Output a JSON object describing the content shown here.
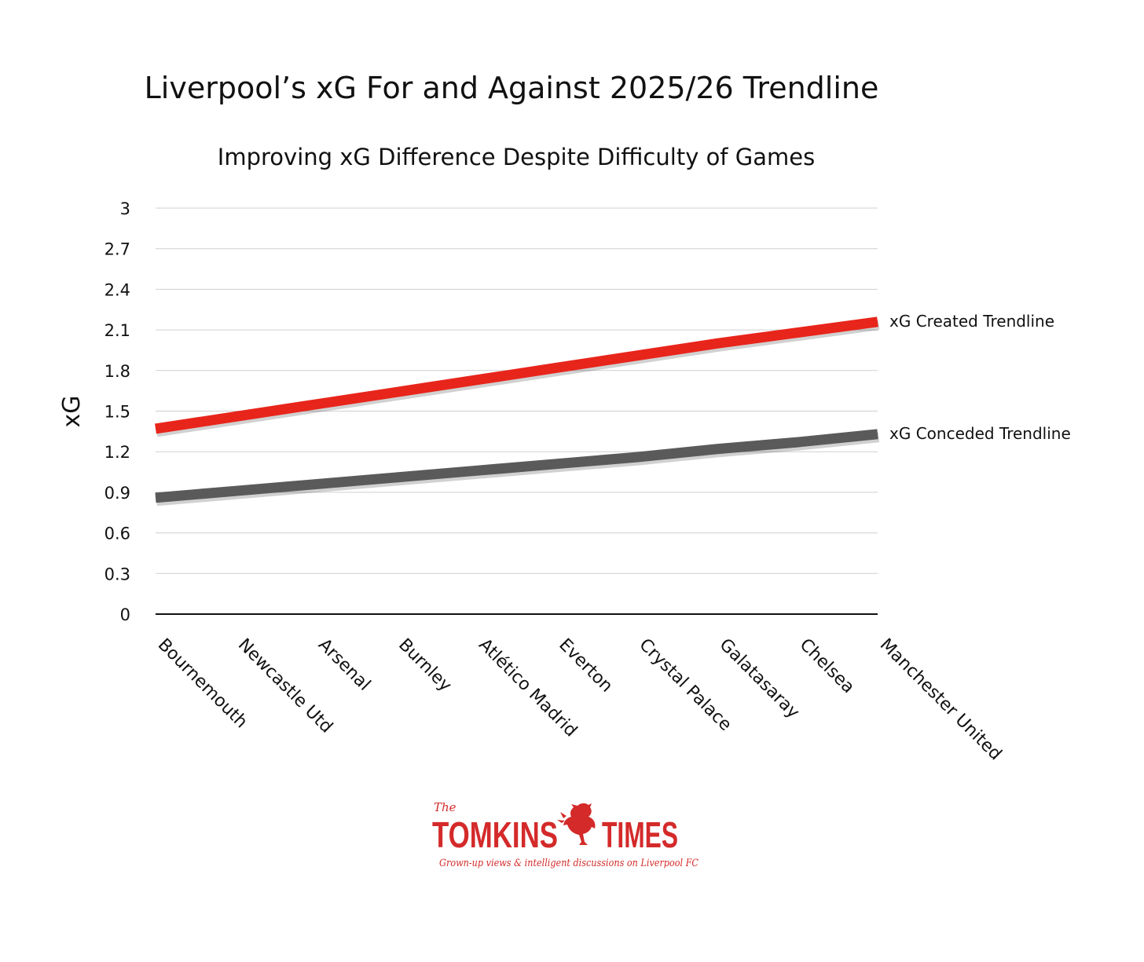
{
  "colors": {
    "created": "#e8251b",
    "conceded": "#5a5a5a",
    "grid": "#cfcfcf",
    "axis": "#111111",
    "brand": "#d42a2a"
  },
  "chart_data": {
    "type": "line",
    "title": "Liverpool’s xG For and Against 2025/26 Trendline",
    "subtitle": "Improving xG Difference Despite Difficulty of Games",
    "xlabel": "",
    "ylabel": "xG",
    "ylim": [
      0,
      3
    ],
    "yticks": [
      "0",
      "0.3",
      "0.6",
      "0.9",
      "1.2",
      "1.5",
      "1.8",
      "2.1",
      "2.4",
      "2.7",
      "3"
    ],
    "grid": true,
    "legend": "inline labels at right end of each line",
    "categories": [
      "Bournemouth",
      "Newcastle Utd",
      "Arsenal",
      "Burnley",
      "Atlético Madrid",
      "Everton",
      "Crystal Palace",
      "Galatasaray",
      "Chelsea",
      "Manchester United"
    ],
    "series": [
      {
        "name": "xG Created Trendline",
        "color_key": "created",
        "values": [
          1.37,
          1.46,
          1.55,
          1.64,
          1.73,
          1.82,
          1.91,
          2.0,
          2.08,
          2.16
        ]
      },
      {
        "name": "xG Conceded Trendline",
        "color_key": "conceded",
        "values": [
          0.86,
          0.91,
          0.96,
          1.01,
          1.06,
          1.11,
          1.16,
          1.22,
          1.27,
          1.33
        ]
      }
    ]
  },
  "logo": {
    "the": "The",
    "word_left": "TOMKINS",
    "word_right": "TIMES",
    "tagline": "Grown-up views & intelligent discussions on Liverpool FC",
    "emblem_icon": "liver-bird-icon"
  }
}
